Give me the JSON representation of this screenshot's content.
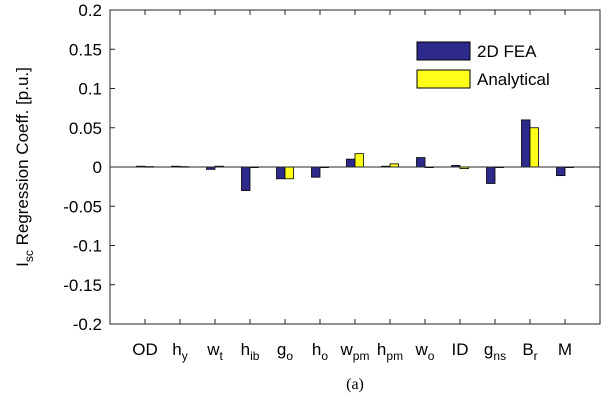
{
  "chart_data": {
    "type": "bar",
    "ylabel": {
      "main": "I",
      "sub": "sc",
      "rest": " Regression Coeff. [p.u.]"
    },
    "ylim": [
      -0.2,
      0.2
    ],
    "yticks": [
      0.2,
      0.15,
      0.1,
      0.05,
      0,
      -0.05,
      -0.1,
      -0.15,
      -0.2
    ],
    "ytick_labels": [
      "0.2",
      "0.15",
      "0.1",
      "0.05",
      "0",
      "-0.05",
      "-0.1",
      "-0.15",
      "-0.2"
    ],
    "categories": [
      {
        "main": "OD",
        "sub": ""
      },
      {
        "main": "h",
        "sub": "y"
      },
      {
        "main": "w",
        "sub": "t"
      },
      {
        "main": "h",
        "sub": "ib"
      },
      {
        "main": "g",
        "sub": "o"
      },
      {
        "main": "h",
        "sub": "o"
      },
      {
        "main": "w",
        "sub": "pm"
      },
      {
        "main": "h",
        "sub": "pm"
      },
      {
        "main": "w",
        "sub": "o"
      },
      {
        "main": "ID",
        "sub": ""
      },
      {
        "main": "g",
        "sub": "ns"
      },
      {
        "main": "B",
        "sub": "r"
      },
      {
        "main": "M",
        "sub": ""
      }
    ],
    "series": [
      {
        "name": "2D FEA",
        "color": "#2e2a8c",
        "values": [
          0.001,
          0.001,
          -0.003,
          -0.03,
          -0.015,
          -0.013,
          0.01,
          0.001,
          0.012,
          0.002,
          -0.021,
          0.06,
          -0.011
        ]
      },
      {
        "name": "Analytical",
        "color": "#ffff1a",
        "values": [
          0.0005,
          0.0005,
          0.001,
          0.0,
          -0.015,
          0.0,
          0.017,
          0.004,
          0.0,
          -0.002,
          0.0,
          0.05,
          0.0
        ]
      }
    ],
    "legend_position": "top-right",
    "grid": false
  },
  "caption": "(a)"
}
